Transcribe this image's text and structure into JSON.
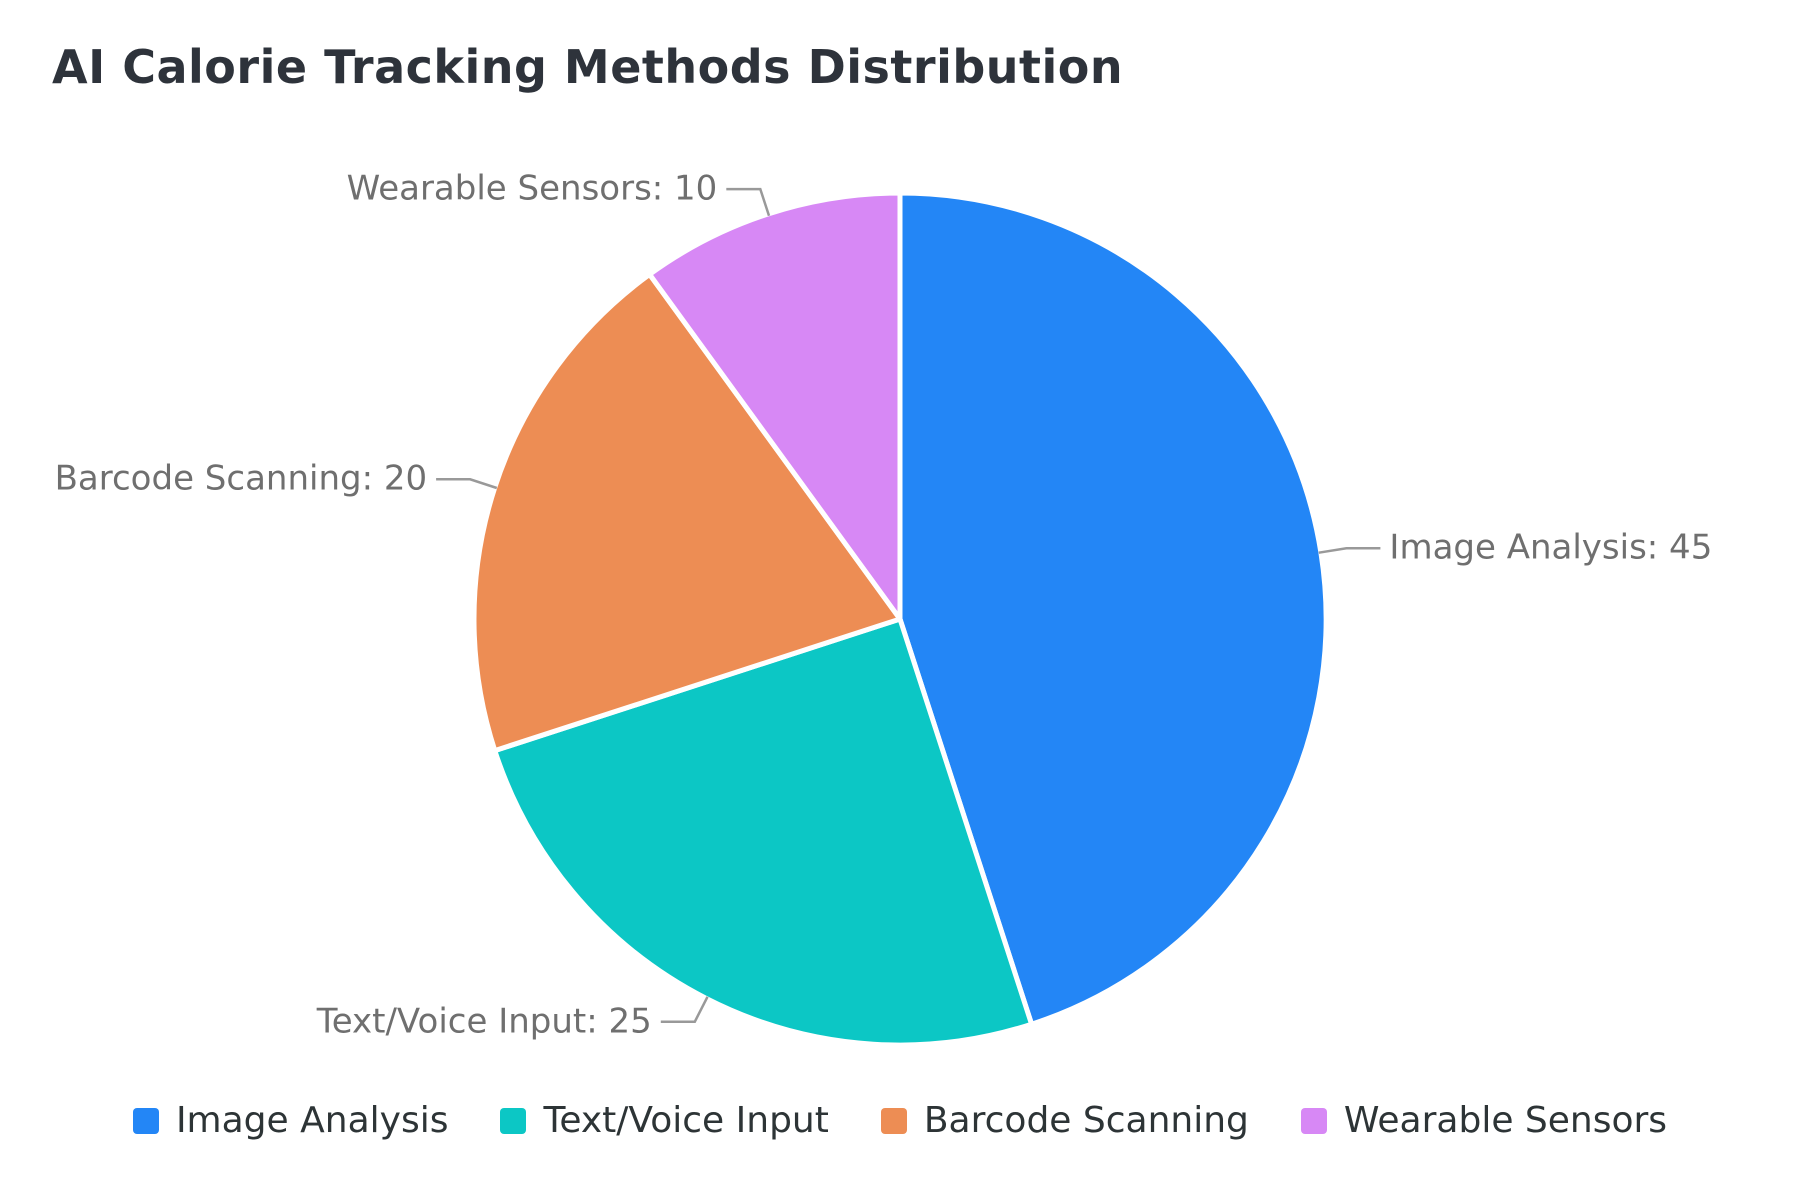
{
  "chart_data": {
    "type": "pie",
    "title": "AI Calorie Tracking Methods Distribution",
    "total": 100,
    "direction": "clockwise",
    "start_angle": "12-oclock",
    "legend_position": "bottom",
    "background_color": "#ffffff",
    "title_color": "#2e333b",
    "label_text_color": "#6f6f6f",
    "leader_line_color": "#999999",
    "slice_border_color": "#ffffff",
    "slices": [
      {
        "label": "Image Analysis",
        "value": 45,
        "color": "#2386F6",
        "callout": "Image Analysis: 45"
      },
      {
        "label": "Text/Voice Input",
        "value": 25,
        "color": "#0CC7C5",
        "callout": "Text/Voice Input: 25"
      },
      {
        "label": "Barcode Scanning",
        "value": 20,
        "color": "#ED8D54",
        "callout": "Barcode Scanning: 20"
      },
      {
        "label": "Wearable Sensors",
        "value": 10,
        "color": "#D788F5",
        "callout": "Wearable Sensors: 10"
      }
    ]
  }
}
